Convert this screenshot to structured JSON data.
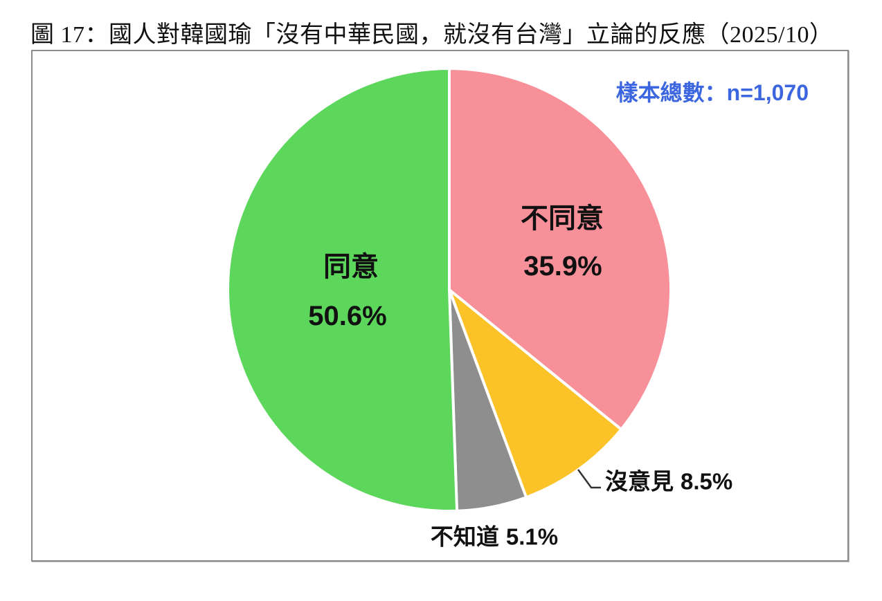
{
  "page": {
    "title": "圖 17：國人對韓國瑜「沒有中華民國，就沒有台灣」立論的反應（2025/10）"
  },
  "sample": {
    "label": "樣本總數：n=1,070"
  },
  "chart_data": {
    "type": "pie",
    "figure_label": "圖 17",
    "title": "國人對韓國瑜「沒有中華民國，就沒有台灣」立論的反應",
    "date": "2025/10",
    "sample_note": "樣本總數：n=1,070",
    "n": "1,070",
    "start_angle_deg": 0,
    "direction": "clockwise",
    "legend_position": "labels-inside-and-callouts",
    "slices": [
      {
        "name": "disagree",
        "label": "不同意",
        "value": 35.9,
        "pct_text": "35.9%",
        "color": "#F8909A",
        "label_placement": "inside"
      },
      {
        "name": "no-opinion",
        "label": "沒意見",
        "value": 8.5,
        "pct_text": "8.5%",
        "color": "#FBC327",
        "label_placement": "callout"
      },
      {
        "name": "dont-know",
        "label": "不知道",
        "value": 5.1,
        "pct_text": "5.1%",
        "color": "#8E8E8E",
        "label_placement": "below"
      },
      {
        "name": "agree",
        "label": "同意",
        "value": 50.6,
        "pct_text": "50.6%",
        "color": "#5CD75C",
        "label_placement": "inside"
      }
    ],
    "colors": {
      "sample_text": "#3B66DF",
      "label_text": "#111111",
      "slice_divider": "#FFFFFF",
      "frame_border": "#8C8C8C",
      "leader_line": "#333333"
    }
  }
}
